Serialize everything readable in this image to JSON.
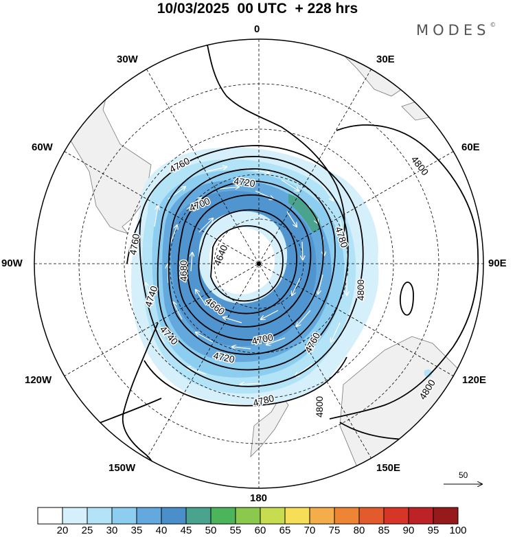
{
  "header": {
    "title": "10/03/2025  00 UTC  + 228 hrs",
    "brand": "MODES",
    "brand_mark": "©"
  },
  "map": {
    "projection": "south-polar-stereographic",
    "longitude_labels": {
      "top": "0",
      "top_left": "30W",
      "top_right": "30E",
      "upper_left": "60W",
      "upper_right": "60E",
      "left": "90W",
      "right": "90E",
      "lower_left": "120W",
      "lower_right": "120E",
      "bottom_left": "150W",
      "bottom_right": "150E",
      "bottom": "180"
    },
    "contour_labels": [
      "4760",
      "4720",
      "4700",
      "4640",
      "4680",
      "4740",
      "4660",
      "4740",
      "4720",
      "4700",
      "4760",
      "4780",
      "4780",
      "4800",
      "4800",
      "4800",
      "4760"
    ],
    "land_color": "#f0f0f0",
    "contour_color": "#000000"
  },
  "wind_vector_reference": {
    "value": "50"
  },
  "colorbar": {
    "levels": [
      "20",
      "25",
      "30",
      "35",
      "40",
      "45",
      "50",
      "55",
      "60",
      "65",
      "70",
      "75",
      "80",
      "85",
      "90",
      "95",
      "100"
    ],
    "colors": [
      "#ffffff",
      "#d6f0fb",
      "#b3e3f6",
      "#8ccdf0",
      "#63a9dd",
      "#4a8fc9",
      "#4aa38c",
      "#4cb55b",
      "#8ac94d",
      "#c8dc50",
      "#f6de58",
      "#f3ad4a",
      "#ee8535",
      "#e35a2c",
      "#d73527",
      "#bd2226",
      "#96191c"
    ]
  }
}
